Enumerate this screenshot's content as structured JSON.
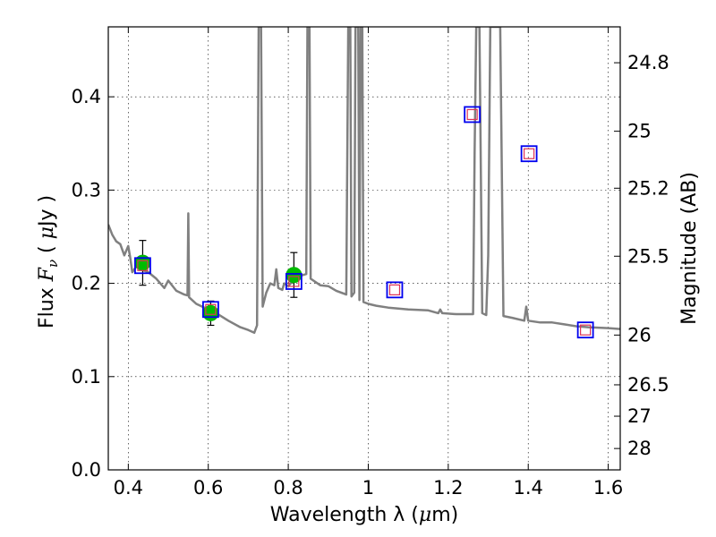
{
  "chart_data": {
    "type": "scatter",
    "xlabel_text": "Wavelength  λ (",
    "xlabel_unit": "μ",
    "xlabel_end": "m)",
    "ylabel_text": "Flux  ",
    "ylabel_var": "F",
    "ylabel_sub": "ν",
    "ylabel_unit_open": "  ( ",
    "ylabel_unit_mu": "μ",
    "ylabel_unit_end": "Jy )",
    "y2label": "Magnitude (AB)",
    "xlim": [
      0.35,
      1.63
    ],
    "ylim": [
      0.0,
      0.475
    ],
    "xticks": [
      0.4,
      0.6,
      0.8,
      1.0,
      1.2,
      1.4,
      1.6
    ],
    "xticklabels": [
      "0.4",
      "0.6",
      "0.8",
      "1",
      "1.2",
      "1.4",
      "1.6"
    ],
    "yticks": [
      0.0,
      0.1,
      0.2,
      0.3,
      0.4
    ],
    "yticklabels": [
      "0.0",
      "0.1",
      "0.2",
      "0.3",
      "0.4"
    ],
    "y2ticks": [
      {
        "label": "24.8",
        "mag": 24.8
      },
      {
        "label": "25",
        "mag": 25.0
      },
      {
        "label": "25.2",
        "mag": 25.2
      },
      {
        "label": "25.5",
        "mag": 25.5
      },
      {
        "label": "26",
        "mag": 26.0
      },
      {
        "label": "26.5",
        "mag": 26.5
      },
      {
        "label": "27",
        "mag": 27.0
      },
      {
        "label": "28",
        "mag": 28.0
      }
    ],
    "grid": true,
    "colors": {
      "template": "#808080",
      "observed": "#00bb00",
      "model_outer": "#0000ee",
      "model_inner": "#dd3355",
      "errorbar": "#000000"
    },
    "template_spectrum": [
      [
        0.35,
        0.263
      ],
      [
        0.36,
        0.252
      ],
      [
        0.37,
        0.245
      ],
      [
        0.38,
        0.242
      ],
      [
        0.39,
        0.23
      ],
      [
        0.4,
        0.24
      ],
      [
        0.405,
        0.227
      ],
      [
        0.41,
        0.212
      ],
      [
        0.42,
        0.218
      ],
      [
        0.43,
        0.215
      ],
      [
        0.45,
        0.212
      ],
      [
        0.47,
        0.205
      ],
      [
        0.48,
        0.2
      ],
      [
        0.49,
        0.195
      ],
      [
        0.5,
        0.203
      ],
      [
        0.52,
        0.192
      ],
      [
        0.54,
        0.188
      ],
      [
        0.548,
        0.187
      ],
      [
        0.55,
        0.275
      ],
      [
        0.552,
        0.185
      ],
      [
        0.57,
        0.178
      ],
      [
        0.6,
        0.172
      ],
      [
        0.62,
        0.168
      ],
      [
        0.65,
        0.16
      ],
      [
        0.68,
        0.153
      ],
      [
        0.7,
        0.15
      ],
      [
        0.715,
        0.147
      ],
      [
        0.722,
        0.155
      ],
      [
        0.726,
        0.475
      ],
      [
        0.732,
        0.475
      ],
      [
        0.736,
        0.175
      ],
      [
        0.745,
        0.19
      ],
      [
        0.755,
        0.2
      ],
      [
        0.765,
        0.198
      ],
      [
        0.77,
        0.215
      ],
      [
        0.775,
        0.195
      ],
      [
        0.785,
        0.193
      ],
      [
        0.79,
        0.2
      ],
      [
        0.8,
        0.197
      ],
      [
        0.812,
        0.203
      ],
      [
        0.83,
        0.208
      ],
      [
        0.845,
        0.21
      ],
      [
        0.848,
        0.475
      ],
      [
        0.853,
        0.475
      ],
      [
        0.856,
        0.205
      ],
      [
        0.88,
        0.198
      ],
      [
        0.9,
        0.197
      ],
      [
        0.92,
        0.192
      ],
      [
        0.945,
        0.188
      ],
      [
        0.95,
        0.475
      ],
      [
        0.955,
        0.475
      ],
      [
        0.958,
        0.186
      ],
      [
        0.965,
        0.19
      ],
      [
        0.968,
        0.475
      ],
      [
        0.975,
        0.475
      ],
      [
        0.978,
        0.182
      ],
      [
        0.981,
        0.475
      ],
      [
        0.985,
        0.475
      ],
      [
        0.988,
        0.18
      ],
      [
        1.0,
        0.178
      ],
      [
        1.02,
        0.176
      ],
      [
        1.05,
        0.174
      ],
      [
        1.1,
        0.172
      ],
      [
        1.15,
        0.171
      ],
      [
        1.175,
        0.168
      ],
      [
        1.18,
        0.172
      ],
      [
        1.185,
        0.168
      ],
      [
        1.22,
        0.167
      ],
      [
        1.255,
        0.167
      ],
      [
        1.262,
        0.167
      ],
      [
        1.266,
        0.34
      ],
      [
        1.27,
        0.475
      ],
      [
        1.278,
        0.475
      ],
      [
        1.285,
        0.168
      ],
      [
        1.295,
        0.166
      ],
      [
        1.3,
        0.23
      ],
      [
        1.305,
        0.475
      ],
      [
        1.33,
        0.475
      ],
      [
        1.338,
        0.165
      ],
      [
        1.36,
        0.163
      ],
      [
        1.39,
        0.16
      ],
      [
        1.395,
        0.175
      ],
      [
        1.4,
        0.16
      ],
      [
        1.43,
        0.158
      ],
      [
        1.46,
        0.158
      ],
      [
        1.49,
        0.156
      ],
      [
        1.52,
        0.154
      ],
      [
        1.55,
        0.153
      ],
      [
        1.6,
        0.152
      ],
      [
        1.63,
        0.151
      ]
    ],
    "observed": [
      {
        "x": 0.436,
        "y": 0.222,
        "yerr": 0.024
      },
      {
        "x": 0.606,
        "y": 0.168,
        "yerr": 0.013
      },
      {
        "x": 0.814,
        "y": 0.209,
        "yerr": 0.024
      }
    ],
    "model": [
      {
        "x": 0.436,
        "y": 0.219
      },
      {
        "x": 0.606,
        "y": 0.172
      },
      {
        "x": 0.814,
        "y": 0.202
      },
      {
        "x": 1.066,
        "y": 0.193
      },
      {
        "x": 1.26,
        "y": 0.381
      },
      {
        "x": 1.402,
        "y": 0.339
      },
      {
        "x": 1.543,
        "y": 0.15
      }
    ]
  }
}
